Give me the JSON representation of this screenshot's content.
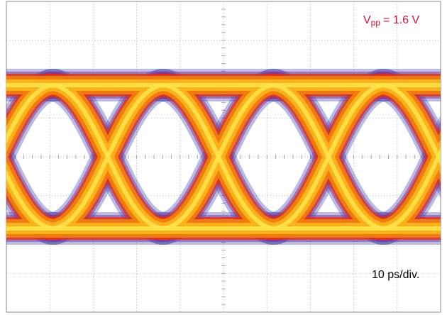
{
  "annotations": {
    "amplitude": {
      "symbol": "V",
      "subscript": "pp",
      "text": "= 1.6 V"
    },
    "timebase": "10 ps/div."
  }
}
